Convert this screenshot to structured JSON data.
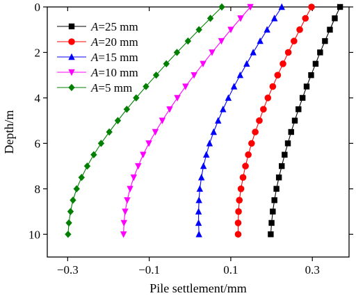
{
  "chart_data": {
    "type": "line",
    "xlabel": "Pile settlement/mm",
    "ylabel": "Depth/m",
    "xlim": [
      -0.35,
      0.39
    ],
    "ylim": [
      0,
      11
    ],
    "y_inverted": true,
    "x_ticks": [
      -0.3,
      -0.1,
      0.1,
      0.3
    ],
    "x_tick_labels": [
      "−0.3",
      "−0.1",
      "0.1",
      "0.3"
    ],
    "y_ticks": [
      0,
      2,
      4,
      6,
      8,
      10
    ],
    "y_tick_labels": [
      "0",
      "2",
      "4",
      "6",
      "8",
      "10"
    ],
    "grid": false,
    "legend_position": "top-left",
    "y": [
      0,
      0.5,
      1,
      1.5,
      2,
      2.5,
      3,
      3.5,
      4,
      4.5,
      5,
      5.5,
      6,
      6.5,
      7,
      7.5,
      8,
      8.5,
      9,
      9.5,
      10
    ],
    "series": [
      {
        "name_prefix": "A",
        "name_suffix": "=25 mm",
        "marker": "square",
        "color": "#000000",
        "x": [
          0.368,
          0.355,
          0.343,
          0.331,
          0.319,
          0.308,
          0.297,
          0.286,
          0.276,
          0.266,
          0.257,
          0.248,
          0.24,
          0.232,
          0.225,
          0.218,
          0.212,
          0.207,
          0.203,
          0.2,
          0.198
        ]
      },
      {
        "name_prefix": "A",
        "name_suffix": "=20 mm",
        "marker": "circle",
        "color": "#ff0000",
        "x": [
          0.298,
          0.283,
          0.269,
          0.255,
          0.241,
          0.228,
          0.215,
          0.203,
          0.191,
          0.18,
          0.17,
          0.16,
          0.151,
          0.143,
          0.136,
          0.13,
          0.125,
          0.121,
          0.119,
          0.118,
          0.118
        ]
      },
      {
        "name_prefix": "A",
        "name_suffix": "=15 mm",
        "marker": "triangle-up",
        "color": "#0000ff",
        "x": [
          0.225,
          0.207,
          0.189,
          0.172,
          0.155,
          0.139,
          0.123,
          0.108,
          0.094,
          0.081,
          0.069,
          0.058,
          0.048,
          0.04,
          0.033,
          0.028,
          0.024,
          0.022,
          0.021,
          0.021,
          0.022
        ]
      },
      {
        "name_prefix": "A",
        "name_suffix": "=10 mm",
        "marker": "triangle-down",
        "color": "#ff00ff",
        "x": [
          0.148,
          0.124,
          0.1,
          0.077,
          0.054,
          0.032,
          0.01,
          -0.011,
          -0.031,
          -0.05,
          -0.068,
          -0.085,
          -0.101,
          -0.115,
          -0.127,
          -0.138,
          -0.147,
          -0.154,
          -0.159,
          -0.162,
          -0.163
        ]
      },
      {
        "name_prefix": "A",
        "name_suffix": "=5 mm",
        "marker": "diamond",
        "color": "#007f00",
        "x": [
          0.078,
          0.05,
          0.022,
          -0.005,
          -0.032,
          -0.058,
          -0.083,
          -0.108,
          -0.132,
          -0.155,
          -0.177,
          -0.198,
          -0.218,
          -0.236,
          -0.252,
          -0.266,
          -0.278,
          -0.287,
          -0.293,
          -0.297,
          -0.299
        ]
      }
    ]
  }
}
